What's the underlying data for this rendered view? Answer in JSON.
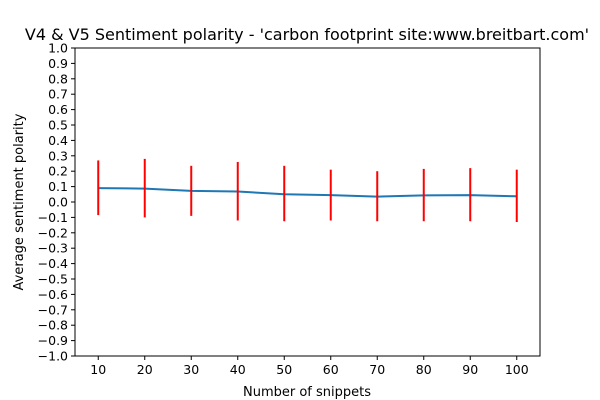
{
  "chart_data": {
    "type": "line",
    "title": "V4 & V5 Sentiment polarity - 'carbon footprint site:www.breitbart.com'",
    "xlabel": "Number of snippets",
    "ylabel": "Average sentiment polarity",
    "x": [
      10,
      20,
      30,
      40,
      50,
      60,
      70,
      80,
      90,
      100
    ],
    "xlim": [
      5,
      105
    ],
    "ylim": [
      -1.0,
      1.0
    ],
    "x_ticks": [
      "10",
      "20",
      "30",
      "40",
      "50",
      "60",
      "70",
      "80",
      "90",
      "100"
    ],
    "y_ticks": [
      "−1.0",
      "−0.9",
      "−0.8",
      "−0.7",
      "−0.6",
      "−0.5",
      "−0.4",
      "−0.3",
      "−0.2",
      "−0.1",
      "0.0",
      "0.1",
      "0.2",
      "0.3",
      "0.4",
      "0.5",
      "0.6",
      "0.7",
      "0.8",
      "0.9",
      "1.0"
    ],
    "grid": false,
    "series": [
      {
        "values": [
          0.09,
          0.087,
          0.072,
          0.068,
          0.05,
          0.045,
          0.035,
          0.043,
          0.045,
          0.037
        ],
        "error_low": [
          -0.085,
          -0.1,
          -0.09,
          -0.12,
          -0.125,
          -0.12,
          -0.125,
          -0.125,
          -0.125,
          -0.13
        ],
        "error_high": [
          0.27,
          0.28,
          0.235,
          0.26,
          0.235,
          0.21,
          0.2,
          0.215,
          0.22,
          0.21
        ],
        "color": "#1f77b4",
        "error_color": "#ff0000"
      }
    ]
  }
}
